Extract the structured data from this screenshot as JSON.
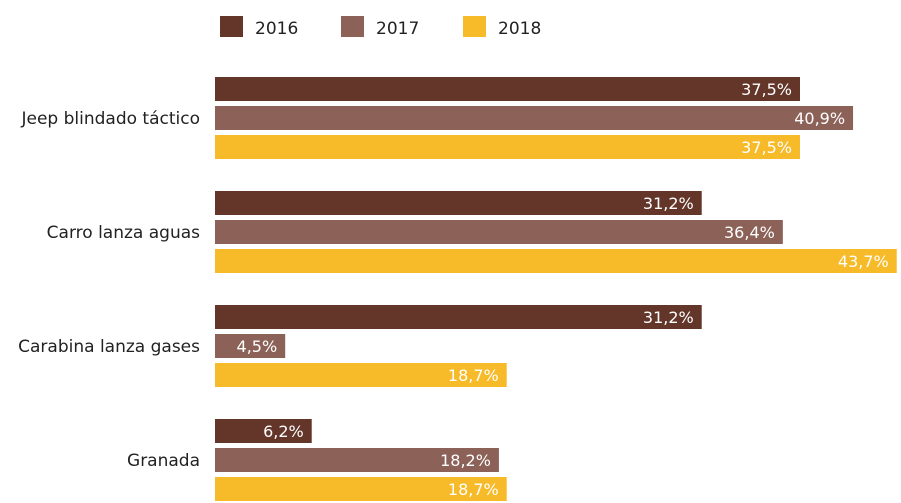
{
  "chart_data": {
    "type": "bar",
    "orientation": "horizontal",
    "categories": [
      "Jeep blindado táctico",
      "Carro lanza aguas",
      "Carabina lanza gases",
      "Granada"
    ],
    "series": [
      {
        "name": "2016",
        "color": "#633629",
        "values": [
          37.5,
          31.2,
          31.2,
          6.2
        ],
        "labels": [
          "37,5%",
          "31,2%",
          "31,2%",
          "6,2%"
        ]
      },
      {
        "name": "2017",
        "color": "#8c6258",
        "values": [
          40.9,
          36.4,
          4.5,
          18.2
        ],
        "labels": [
          "40,9%",
          "36,4%",
          "4,5%",
          "18,2%"
        ]
      },
      {
        "name": "2018",
        "color": "#f7ba28",
        "values": [
          37.5,
          43.7,
          18.7,
          18.7
        ],
        "labels": [
          "37,5%",
          "43,7%",
          "18,7%",
          "18,7%"
        ]
      }
    ],
    "legend_position": "top",
    "grid": false,
    "axis_visible": false,
    "xlim": [
      0,
      45
    ],
    "label_color": "#ffffff",
    "text_color": "#222222"
  }
}
